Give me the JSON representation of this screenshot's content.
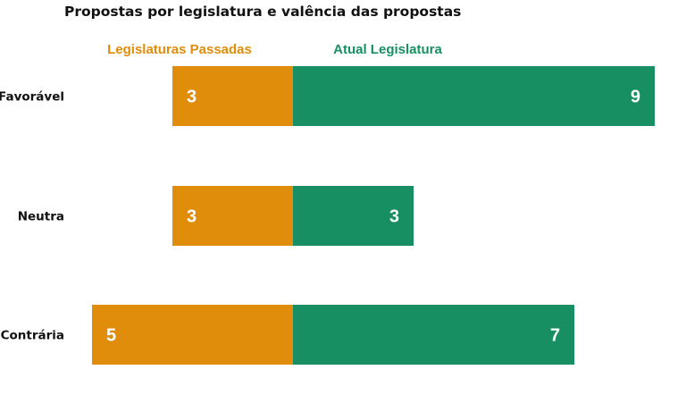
{
  "chart_data": {
    "type": "bar",
    "orientation": "horizontal-diverging",
    "title": "Propostas por legislatura e valência das propostas",
    "categories": [
      "Favorável",
      "Neutra",
      "Contrária"
    ],
    "series": [
      {
        "name": "Legislaturas Passadas",
        "color": "#DF8D0A",
        "values": [
          3,
          3,
          5
        ]
      },
      {
        "name": "Atual Legislatura",
        "color": "#178F62",
        "values": [
          9,
          3,
          7
        ]
      }
    ],
    "xlabel": "",
    "ylabel": "",
    "grid": false,
    "legend": "top"
  }
}
